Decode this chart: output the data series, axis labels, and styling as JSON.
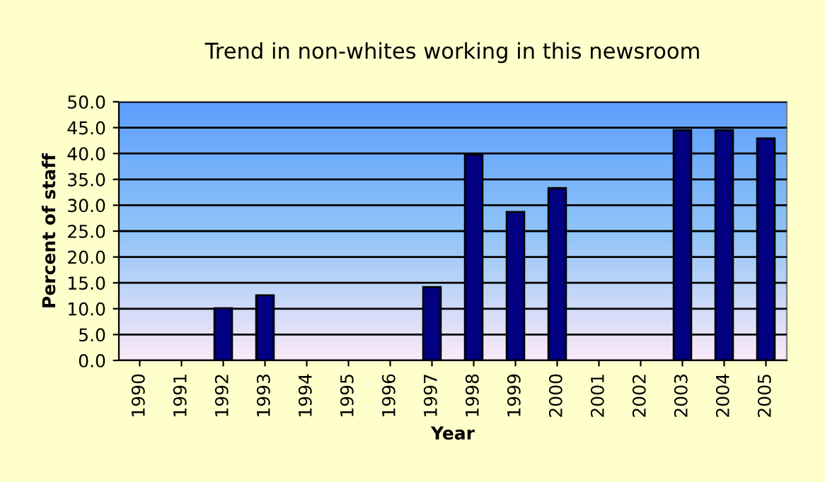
{
  "chart_data": {
    "type": "bar",
    "title": "Trend in non-whites working in this newsroom",
    "xlabel": "Year",
    "ylabel": "Percent of staff",
    "categories": [
      "1990",
      "1991",
      "1992",
      "1993",
      "1994",
      "1995",
      "1996",
      "1997",
      "1998",
      "1999",
      "2000",
      "2001",
      "2002",
      "2003",
      "2004",
      "2005"
    ],
    "values": [
      null,
      null,
      10.1,
      12.6,
      null,
      null,
      null,
      14.2,
      39.8,
      28.7,
      33.3,
      null,
      null,
      44.5,
      44.5,
      42.9
    ],
    "color": "#000080",
    "ylim": [
      0,
      50
    ],
    "yticks": [
      {
        "value": 0,
        "label": "0.0"
      },
      {
        "value": 5,
        "label": "5.0"
      },
      {
        "value": 10,
        "label": "10.0"
      },
      {
        "value": 15,
        "label": "15.0"
      },
      {
        "value": 20,
        "label": "20.0"
      },
      {
        "value": 25,
        "label": "25.0"
      },
      {
        "value": 30,
        "label": "30.0"
      },
      {
        "value": 35,
        "label": "35.0"
      },
      {
        "value": 40,
        "label": "40.0"
      },
      {
        "value": 45,
        "label": "45.0"
      },
      {
        "value": 50,
        "label": "50.0"
      }
    ],
    "grid": "y"
  }
}
